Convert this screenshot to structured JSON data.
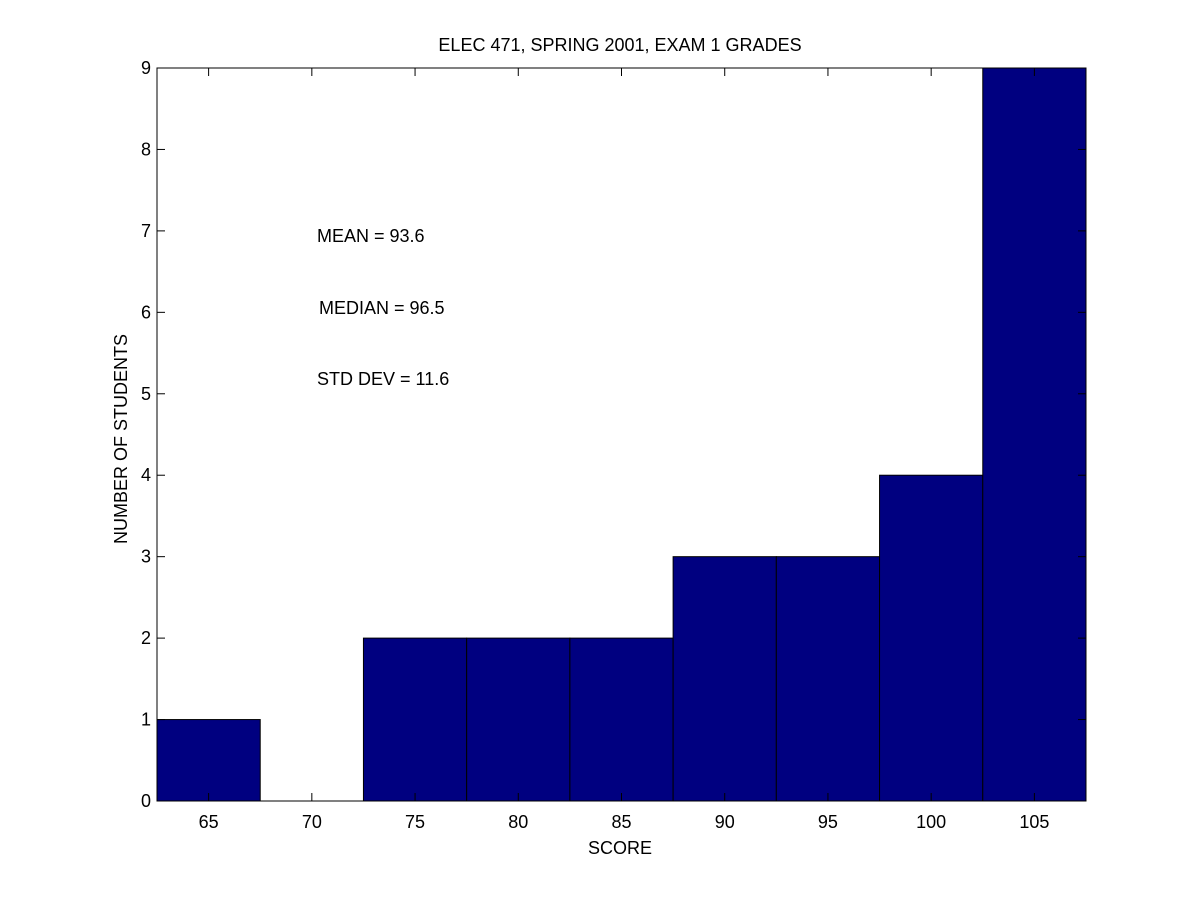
{
  "chart_data": {
    "type": "bar",
    "title": "ELEC 471, SPRING 2001, EXAM 1 GRADES",
    "xlabel": "SCORE",
    "ylabel": "NUMBER OF STUDENTS",
    "categories": [
      "65",
      "70",
      "75",
      "80",
      "85",
      "90",
      "95",
      "100",
      "105"
    ],
    "x": [
      65,
      70,
      75,
      80,
      85,
      90,
      95,
      100,
      105
    ],
    "values": [
      1,
      0,
      2,
      2,
      2,
      3,
      3,
      4,
      9
    ],
    "bin_width": 5,
    "xlim": [
      62.5,
      107.5
    ],
    "ylim": [
      0,
      9
    ],
    "yticks": [
      0,
      1,
      2,
      3,
      4,
      5,
      6,
      7,
      8,
      9
    ],
    "bar_color": "#000080",
    "grid": false,
    "annotations": [
      "MEAN = 93.6",
      "MEDIAN = 96.5",
      "STD DEV = 11.6"
    ]
  }
}
